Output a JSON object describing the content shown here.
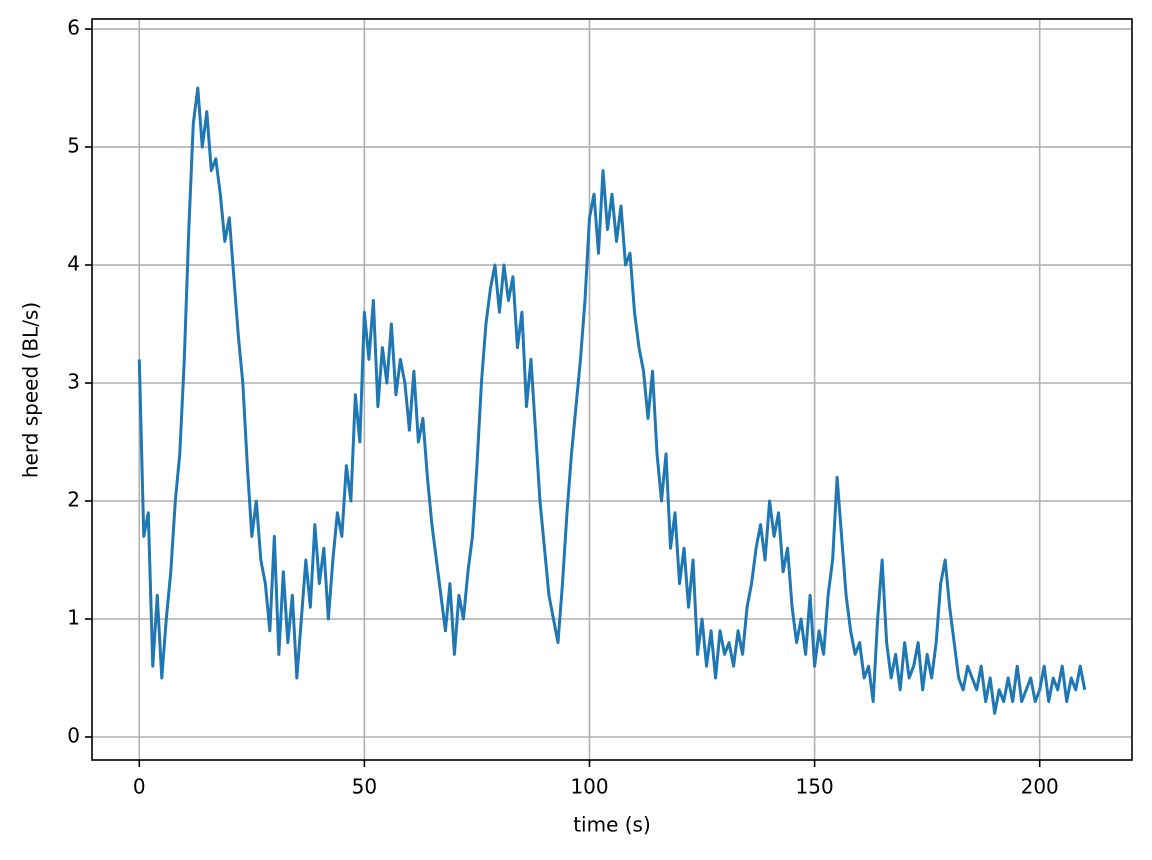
{
  "chart_data": {
    "type": "line",
    "xlabel": "time (s)",
    "ylabel": "herd speed (BL/s)",
    "x": [
      0,
      1,
      2,
      3,
      4,
      5,
      6,
      7,
      8,
      9,
      10,
      11,
      12,
      13,
      14,
      15,
      16,
      17,
      18,
      19,
      20,
      21,
      22,
      23,
      24,
      25,
      26,
      27,
      28,
      29,
      30,
      31,
      32,
      33,
      34,
      35,
      36,
      37,
      38,
      39,
      40,
      41,
      42,
      43,
      44,
      45,
      46,
      47,
      48,
      49,
      50,
      51,
      52,
      53,
      54,
      55,
      56,
      57,
      58,
      59,
      60,
      61,
      62,
      63,
      64,
      65,
      66,
      67,
      68,
      69,
      70,
      71,
      72,
      73,
      74,
      75,
      76,
      77,
      78,
      79,
      80,
      81,
      82,
      83,
      84,
      85,
      86,
      87,
      88,
      89,
      90,
      91,
      92,
      93,
      94,
      95,
      96,
      97,
      98,
      99,
      100,
      101,
      102,
      103,
      104,
      105,
      106,
      107,
      108,
      109,
      110,
      111,
      112,
      113,
      114,
      115,
      116,
      117,
      118,
      119,
      120,
      121,
      122,
      123,
      124,
      125,
      126,
      127,
      128,
      129,
      130,
      131,
      132,
      133,
      134,
      135,
      136,
      137,
      138,
      139,
      140,
      141,
      142,
      143,
      144,
      145,
      146,
      147,
      148,
      149,
      150,
      151,
      152,
      153,
      154,
      155,
      156,
      157,
      158,
      159,
      160,
      161,
      162,
      163,
      164,
      165,
      166,
      167,
      168,
      169,
      170,
      171,
      172,
      173,
      174,
      175,
      176,
      177,
      178,
      179,
      180,
      181,
      182,
      183,
      184,
      185,
      186,
      187,
      188,
      189,
      190,
      191,
      192,
      193,
      194,
      195,
      196,
      197,
      198,
      199,
      200,
      201,
      202,
      203,
      204,
      205,
      206,
      207,
      208,
      209,
      210
    ],
    "series": [
      {
        "name": "herd speed",
        "color": "#1f77b4",
        "values": [
          3.2,
          1.7,
          1.9,
          0.6,
          1.2,
          0.5,
          1.0,
          1.4,
          2.0,
          2.4,
          3.2,
          4.3,
          5.2,
          5.5,
          5.0,
          5.3,
          4.8,
          4.9,
          4.6,
          4.2,
          4.4,
          3.9,
          3.4,
          3.0,
          2.3,
          1.7,
          2.0,
          1.5,
          1.3,
          0.9,
          1.7,
          0.7,
          1.4,
          0.8,
          1.2,
          0.5,
          1.0,
          1.5,
          1.1,
          1.8,
          1.3,
          1.6,
          1.0,
          1.5,
          1.9,
          1.7,
          2.3,
          2.0,
          2.9,
          2.5,
          3.6,
          3.2,
          3.7,
          2.8,
          3.3,
          3.0,
          3.5,
          2.9,
          3.2,
          3.0,
          2.6,
          3.1,
          2.5,
          2.7,
          2.2,
          1.8,
          1.5,
          1.2,
          0.9,
          1.3,
          0.7,
          1.2,
          1.0,
          1.4,
          1.7,
          2.3,
          3.0,
          3.5,
          3.8,
          4.0,
          3.6,
          4.0,
          3.7,
          3.9,
          3.3,
          3.6,
          2.8,
          3.2,
          2.6,
          2.0,
          1.6,
          1.2,
          1.0,
          0.8,
          1.3,
          1.9,
          2.4,
          2.8,
          3.2,
          3.7,
          4.4,
          4.6,
          4.1,
          4.8,
          4.3,
          4.6,
          4.2,
          4.5,
          4.0,
          4.1,
          3.6,
          3.3,
          3.1,
          2.7,
          3.1,
          2.4,
          2.0,
          2.4,
          1.6,
          1.9,
          1.3,
          1.6,
          1.1,
          1.5,
          0.7,
          1.0,
          0.6,
          0.9,
          0.5,
          0.9,
          0.7,
          0.8,
          0.6,
          0.9,
          0.7,
          1.1,
          1.3,
          1.6,
          1.8,
          1.5,
          2.0,
          1.7,
          1.9,
          1.4,
          1.6,
          1.1,
          0.8,
          1.0,
          0.7,
          1.2,
          0.6,
          0.9,
          0.7,
          1.2,
          1.5,
          2.2,
          1.7,
          1.2,
          0.9,
          0.7,
          0.8,
          0.5,
          0.6,
          0.3,
          1.0,
          1.5,
          0.8,
          0.5,
          0.7,
          0.4,
          0.8,
          0.5,
          0.6,
          0.8,
          0.4,
          0.7,
          0.5,
          0.8,
          1.3,
          1.5,
          1.1,
          0.8,
          0.5,
          0.4,
          0.6,
          0.5,
          0.4,
          0.6,
          0.3,
          0.5,
          0.2,
          0.4,
          0.3,
          0.5,
          0.3,
          0.6,
          0.3,
          0.4,
          0.5,
          0.3,
          0.4,
          0.6,
          0.3,
          0.5,
          0.4,
          0.6,
          0.3,
          0.5,
          0.4,
          0.6,
          0.4
        ]
      }
    ],
    "xlim": [
      -10.5,
      220.5
    ],
    "ylim": [
      -0.195,
      6.085
    ],
    "xticks": [
      0,
      50,
      100,
      150,
      200
    ],
    "yticks": [
      0,
      1,
      2,
      3,
      4,
      5,
      6
    ],
    "grid": true
  }
}
